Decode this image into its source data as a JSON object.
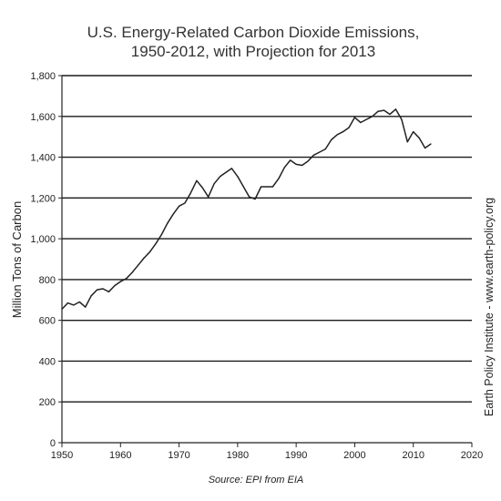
{
  "chart_data": {
    "type": "line",
    "title_line1": "U.S. Energy-Related Carbon Dioxide Emissions,",
    "title_line2": "1950-2012, with Projection for 2013",
    "ylabel": "Million  Tons of Carbon",
    "side_note": "Earth Policy Institute - www.earth-policy.org",
    "source": "Source: EPI from EIA",
    "xlim": [
      1950,
      2020
    ],
    "ylim": [
      0,
      1800
    ],
    "x_ticks": [
      1950,
      1960,
      1970,
      1980,
      1990,
      2000,
      2010,
      2020
    ],
    "y_ticks": [
      0,
      200,
      400,
      600,
      800,
      1000,
      1200,
      1400,
      1600,
      1800
    ],
    "y_tick_labels": [
      "0",
      "200",
      "400",
      "600",
      "800",
      "1,000",
      "1,200",
      "1,400",
      "1,600",
      "1,800"
    ],
    "grid": "horizontal",
    "line_color": "#222222",
    "series": [
      {
        "x": [
          1950,
          1951,
          1952,
          1953,
          1954,
          1955,
          1956,
          1957,
          1958,
          1959,
          1960,
          1961,
          1962,
          1963,
          1964,
          1965,
          1966,
          1967,
          1968,
          1969,
          1970,
          1971,
          1972,
          1973,
          1974,
          1975,
          1976,
          1977,
          1978,
          1979,
          1980,
          1981,
          1982,
          1983,
          1984,
          1985,
          1986,
          1987,
          1988,
          1989,
          1990,
          1991,
          1992,
          1993,
          1994,
          1995,
          1996,
          1997,
          1998,
          1999,
          2000,
          2001,
          2002,
          2003,
          2004,
          2005,
          2006,
          2007,
          2008,
          2009,
          2010,
          2011,
          2012,
          2013
        ],
        "values": [
          655,
          685,
          675,
          690,
          665,
          720,
          750,
          755,
          740,
          770,
          790,
          805,
          835,
          870,
          905,
          935,
          975,
          1020,
          1075,
          1120,
          1160,
          1175,
          1225,
          1285,
          1250,
          1205,
          1270,
          1305,
          1325,
          1345,
          1305,
          1255,
          1205,
          1195,
          1255,
          1255,
          1255,
          1295,
          1350,
          1385,
          1365,
          1360,
          1380,
          1410,
          1425,
          1440,
          1485,
          1510,
          1525,
          1545,
          1595,
          1570,
          1585,
          1600,
          1625,
          1630,
          1610,
          1635,
          1585,
          1475,
          1525,
          1495,
          1445,
          1465
        ]
      }
    ]
  }
}
